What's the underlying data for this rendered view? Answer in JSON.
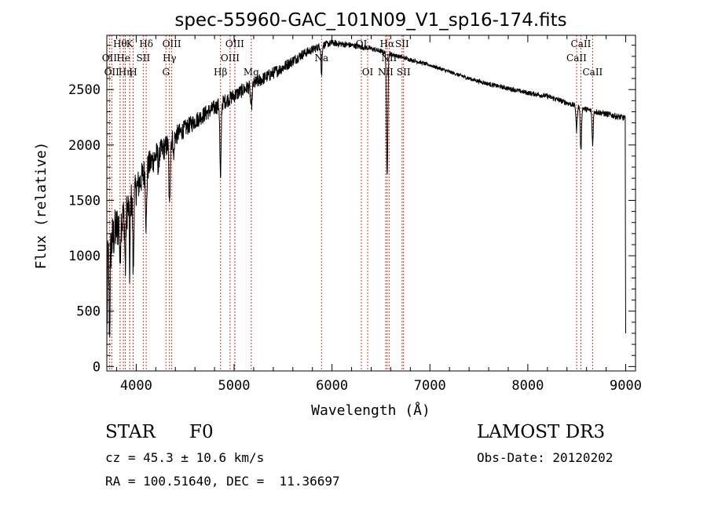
{
  "chart_data": {
    "type": "line",
    "title": "spec-55960-GAC_101N09_V1_sp16-174.fits",
    "xlabel": "Wavelength (Å)",
    "ylabel": "Flux (relative)",
    "xlim": [
      3700,
      9100
    ],
    "ylim": [
      -40,
      2990
    ],
    "x_ticks": [
      4000,
      5000,
      6000,
      7000,
      8000,
      9000
    ],
    "y_ticks": [
      0,
      500,
      1000,
      1500,
      2000,
      2500
    ],
    "grid": false,
    "series": [
      {
        "name": "spectrum",
        "continuum": {
          "x": [
            3700,
            3720,
            3760,
            3800,
            3850,
            3900,
            3950,
            4000,
            4100,
            4200,
            4300,
            4400,
            4500,
            4700,
            4900,
            5100,
            5300,
            5500,
            5700,
            5900,
            6000,
            6200,
            6400,
            6600,
            6800,
            7000,
            7200,
            7400,
            7600,
            7800,
            8000,
            8200,
            8400,
            8600,
            8800,
            8950,
            9000
          ],
          "y": [
            900,
            1000,
            1150,
            1250,
            1320,
            1400,
            1500,
            1600,
            1780,
            1900,
            1980,
            2080,
            2150,
            2280,
            2390,
            2500,
            2600,
            2700,
            2820,
            2900,
            2920,
            2900,
            2870,
            2820,
            2770,
            2720,
            2660,
            2600,
            2550,
            2510,
            2470,
            2440,
            2380,
            2320,
            2280,
            2250,
            2240
          ]
        },
        "absorption_features": [
          {
            "x": 3728,
            "depth": 700,
            "width": 5
          },
          {
            "x": 3835,
            "depth": 400,
            "width": 4
          },
          {
            "x": 3889,
            "depth": 500,
            "width": 5
          },
          {
            "x": 3934,
            "depth": 650,
            "width": 4
          },
          {
            "x": 3970,
            "depth": 700,
            "width": 5
          },
          {
            "x": 4102,
            "depth": 500,
            "width": 6
          },
          {
            "x": 4227,
            "depth": 150,
            "width": 4
          },
          {
            "x": 4340,
            "depth": 600,
            "width": 6
          },
          {
            "x": 4383,
            "depth": 200,
            "width": 4
          },
          {
            "x": 4861,
            "depth": 700,
            "width": 6
          },
          {
            "x": 5175,
            "depth": 200,
            "width": 8
          },
          {
            "x": 5893,
            "depth": 280,
            "width": 5
          },
          {
            "x": 6563,
            "depth": 1100,
            "width": 7
          },
          {
            "x": 8498,
            "depth": 220,
            "width": 6
          },
          {
            "x": 8542,
            "depth": 400,
            "width": 6
          },
          {
            "x": 8662,
            "depth": 300,
            "width": 6
          }
        ],
        "noise_amplitude": [
          {
            "x": 3700,
            "amp": 250
          },
          {
            "x": 4000,
            "amp": 150
          },
          {
            "x": 4500,
            "amp": 80
          },
          {
            "x": 5500,
            "amp": 55
          },
          {
            "x": 6000,
            "amp": 30
          },
          {
            "x": 7000,
            "amp": 15
          },
          {
            "x": 8500,
            "amp": 25
          },
          {
            "x": 9000,
            "amp": 30
          }
        ]
      }
    ],
    "lines": [
      {
        "wave": 3727,
        "label": "OII",
        "row": 2
      },
      {
        "wave": 3750,
        "label": "OII",
        "row": 3
      },
      {
        "wave": 3835,
        "label": "Hθ",
        "row": 1
      },
      {
        "wave": 3869,
        "label": "He",
        "row": 2
      },
      {
        "wave": 3889,
        "label": "Hη",
        "row": 3
      },
      {
        "wave": 3934,
        "label": "K",
        "row": 1
      },
      {
        "wave": 3969,
        "label": "H",
        "row": 3
      },
      {
        "wave": 4072,
        "label": "SII",
        "row": 2
      },
      {
        "wave": 4102,
        "label": "Hδ",
        "row": 1
      },
      {
        "wave": 4304,
        "label": "G",
        "row": 3
      },
      {
        "wave": 4340,
        "label": "Hγ",
        "row": 2
      },
      {
        "wave": 4363,
        "label": "OIII",
        "row": 1
      },
      {
        "wave": 4861,
        "label": "Hβ",
        "row": 3
      },
      {
        "wave": 4959,
        "label": "OIII",
        "row": 2
      },
      {
        "wave": 5007,
        "label": "OIII",
        "row": 1
      },
      {
        "wave": 5175,
        "label": "Mg",
        "row": 3
      },
      {
        "wave": 5893,
        "label": "Na",
        "row": 2
      },
      {
        "wave": 6300,
        "label": "OI",
        "row": 1
      },
      {
        "wave": 6364,
        "label": "OI",
        "row": 3
      },
      {
        "wave": 6548,
        "label": "NII",
        "row": 3
      },
      {
        "wave": 6563,
        "label": "Hα",
        "row": 1
      },
      {
        "wave": 6583,
        "label": "NII",
        "row": 2
      },
      {
        "wave": 6716,
        "label": "SII",
        "row": 1
      },
      {
        "wave": 6731,
        "label": "SII",
        "row": 3
      },
      {
        "wave": 8498,
        "label": "CaII",
        "row": 2
      },
      {
        "wave": 8542,
        "label": "CaII",
        "row": 1
      },
      {
        "wave": 8662,
        "label": "CaII",
        "row": 3
      }
    ],
    "line_color": "#e0301e"
  },
  "info": {
    "object_class": "STAR",
    "subclass": "F0",
    "survey": "LAMOST DR3",
    "cz": "cz = 45.3 ± 10.6 km/s",
    "obs_date": "Obs-Date: 20120202",
    "coords": "RA = 100.51640, DEC =  11.36697"
  }
}
